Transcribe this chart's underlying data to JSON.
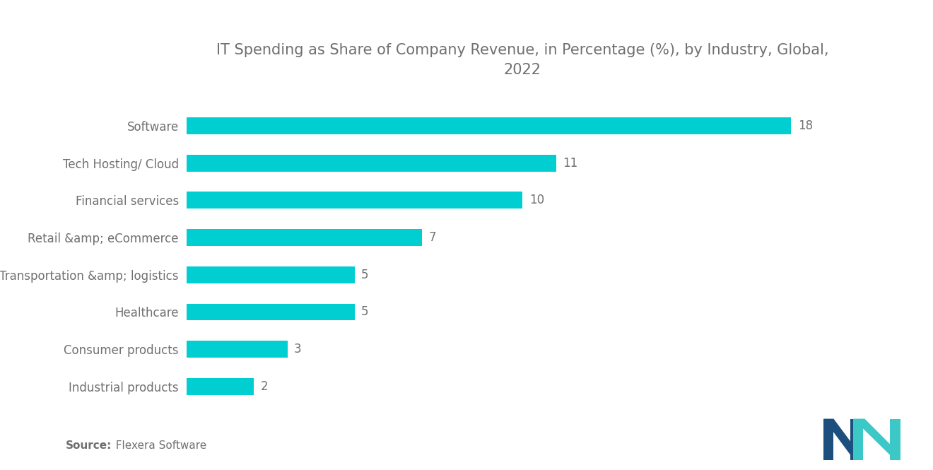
{
  "title_line1": "IT Spending as Share of Company Revenue, in Percentage (%), by Industry, Global,",
  "title_line2": "2022",
  "categories": [
    "Industrial products",
    "Consumer products",
    "Healthcare",
    "Transportation &amp; logistics",
    "Retail &amp; eCommerce",
    "Financial services",
    "Tech Hosting/ Cloud",
    "Software"
  ],
  "values": [
    2,
    3,
    5,
    5,
    7,
    10,
    11,
    18
  ],
  "bar_color": "#00CED1",
  "background_color": "#FFFFFF",
  "label_color": "#707070",
  "value_color": "#707070",
  "title_color": "#707070",
  "source_bold": "Source:",
  "source_normal": "  Flexera Software",
  "xlim": [
    0,
    20
  ],
  "bar_height": 0.45,
  "title_fontsize": 15,
  "label_fontsize": 12,
  "value_fontsize": 12,
  "source_fontsize": 11
}
